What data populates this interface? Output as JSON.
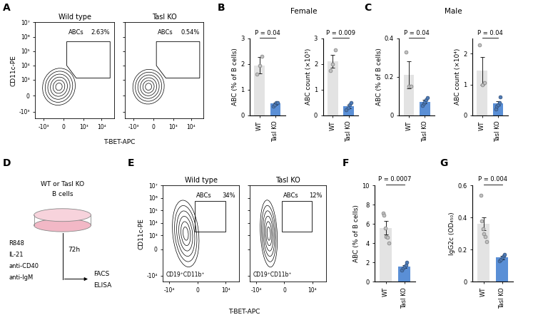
{
  "flow_panels": [
    {
      "panel": "A",
      "x_label": "T-BET-APC",
      "y_label": "CD11c-PE",
      "xlim": [
        -3000,
        50000
      ],
      "xticks": [
        {
          "value": -1000,
          "label": "-10³"
        },
        0,
        {
          "value": 1000,
          "label": "10³"
        },
        {
          "value": 10000,
          "label": "10⁴"
        }
      ],
      "ylim": [
        -3000,
        10000000
      ],
      "yticks": [
        {
          "value": -1000,
          "label": "-10³"
        },
        0,
        {
          "value": 1000,
          "label": "10³"
        },
        {
          "value": 10000,
          "label": "10⁴"
        },
        {
          "value": 100000,
          "label": "10⁵"
        },
        {
          "value": 1000000,
          "label": "10⁶"
        },
        {
          "value": 10000000,
          "label": "10⁷"
        }
      ],
      "plots": [
        {
          "title": "Wild type",
          "gate_label": "ABCs",
          "gate_value": "2.63%"
        },
        {
          "title": "Tasl KO",
          "gate_label": "ABCs",
          "gate_value": "0.54%"
        }
      ]
    },
    {
      "panel": "E",
      "x_label": "T-BET-APC",
      "y_label": "CD11c-PE",
      "xlim": [
        -30000,
        100000
      ],
      "xticks": [
        {
          "value": -10000,
          "label": "-10⁴"
        },
        0,
        {
          "value": 10000,
          "label": "10⁴"
        }
      ],
      "ylim": [
        -30000,
        10000000
      ],
      "yticks": [
        {
          "value": -10000,
          "label": "-10⁴"
        },
        0,
        {
          "value": 1000,
          "label": "10³"
        },
        {
          "value": 10000,
          "label": "10⁴"
        },
        {
          "value": 100000,
          "label": "10⁵"
        },
        {
          "value": 1000000,
          "label": "10⁶"
        },
        {
          "value": 10000000,
          "label": "10⁷"
        }
      ],
      "population_label": "CD19⁺CD11b⁺",
      "plots": [
        {
          "title": "Wild type",
          "gate_label": "ABCs",
          "gate_value": "34%"
        },
        {
          "title": "Tasl KO",
          "gate_label": "ABCs",
          "gate_value": "12%"
        }
      ]
    }
  ],
  "schematic": {
    "panel": "D",
    "cells": [
      "WT or Tasl KO",
      "B cells"
    ],
    "time": "72h",
    "stimuli": [
      "R848",
      "IL-21",
      "anti-CD40",
      "anti-IgM"
    ],
    "readouts": [
      "FACS",
      "ELISA"
    ]
  },
  "groups": [
    {
      "panel": "B",
      "title": "Female"
    },
    {
      "panel": "C",
      "title": "Male"
    }
  ],
  "chart_data": [
    {
      "type": "bar",
      "panel": "B",
      "categories": [
        "WT",
        "Tasl KO"
      ],
      "values": [
        1.95,
        0.45
      ],
      "errors": [
        0.32,
        0.05
      ],
      "points": [
        [
          1.6,
          1.95,
          2.3
        ],
        [
          0.35,
          0.42,
          0.48,
          0.5
        ]
      ],
      "colors": [
        "#e3e3e3",
        "#5a8fd6"
      ],
      "y_label": "ABC (% of B cells)",
      "ylim": [
        0,
        3
      ],
      "yticks": [
        0,
        1,
        2,
        3
      ],
      "p_label": "P = 0.04"
    },
    {
      "type": "bar",
      "panel": "",
      "categories": [
        "WT",
        "Tasl KO"
      ],
      "values": [
        2.1,
        0.35
      ],
      "errors": [
        0.25,
        0.07
      ],
      "points": [
        [
          1.75,
          2.0,
          2.55
        ],
        [
          0.2,
          0.3,
          0.4,
          0.5
        ]
      ],
      "colors": [
        "#e3e3e3",
        "#5a8fd6"
      ],
      "y_label": "ABC count (×10³)",
      "ylim": [
        0,
        3
      ],
      "yticks": [
        0,
        1,
        2,
        3
      ],
      "p_label": "P = 0.009"
    },
    {
      "type": "bar",
      "panel": "C",
      "categories": [
        "WT",
        "Tasl KO"
      ],
      "values": [
        0.21,
        0.07
      ],
      "errors": [
        0.07,
        0.01
      ],
      "points": [
        [
          0.33,
          0.15,
          0.15
        ],
        [
          0.05,
          0.06,
          0.07,
          0.08,
          0.09
        ]
      ],
      "colors": [
        "#e3e3e3",
        "#5a8fd6"
      ],
      "y_label": "ABC (% of B cells)",
      "ylim": [
        0,
        0.4
      ],
      "yticks": [
        0,
        0.2,
        0.4
      ],
      "p_label": "P = 0.04"
    },
    {
      "type": "bar",
      "panel": "",
      "categories": [
        "WT",
        "Tasl KO"
      ],
      "values": [
        1.45,
        0.38
      ],
      "errors": [
        0.45,
        0.07
      ],
      "points": [
        [
          2.3,
          1.0,
          1.05
        ],
        [
          0.2,
          0.3,
          0.35,
          0.4,
          0.6
        ]
      ],
      "colors": [
        "#e3e3e3",
        "#5a8fd6"
      ],
      "y_label": "ABC count (×10⁴)",
      "ylim": [
        0,
        2.5
      ],
      "yticks": [
        0,
        1,
        2
      ],
      "p_label": "P = 0.04"
    },
    {
      "type": "bar",
      "panel": "F",
      "categories": [
        "WT",
        "Tasl KO"
      ],
      "values": [
        5.6,
        1.6
      ],
      "errors": [
        0.7,
        0.15
      ],
      "points": [
        [
          7.1,
          6.9,
          5.6,
          4.7,
          4.6,
          4.0
        ],
        [
          1.2,
          1.4,
          1.6,
          1.7,
          2.0
        ]
      ],
      "colors": [
        "#e3e3e3",
        "#5a8fd6"
      ],
      "y_label": "ABC (% of B cells)",
      "ylim": [
        0,
        10
      ],
      "yticks": [
        0,
        2,
        4,
        6,
        8,
        10
      ],
      "p_label": "P = 0.0007"
    },
    {
      "type": "bar",
      "panel": "G",
      "categories": [
        "WT",
        "Tasl KO"
      ],
      "values": [
        0.36,
        0.15
      ],
      "errors": [
        0.04,
        0.01
      ],
      "points": [
        [
          0.54,
          0.38,
          0.33,
          0.3,
          0.28,
          0.25
        ],
        [
          0.13,
          0.14,
          0.15,
          0.16,
          0.17
        ]
      ],
      "colors": [
        "#e3e3e3",
        "#5a8fd6"
      ],
      "y_label": "IgG2c (OD₄₅₀)",
      "ylim": [
        0,
        0.6
      ],
      "yticks": [
        0,
        0.2,
        0.4,
        0.6
      ],
      "p_label": "P = 0.004"
    }
  ]
}
